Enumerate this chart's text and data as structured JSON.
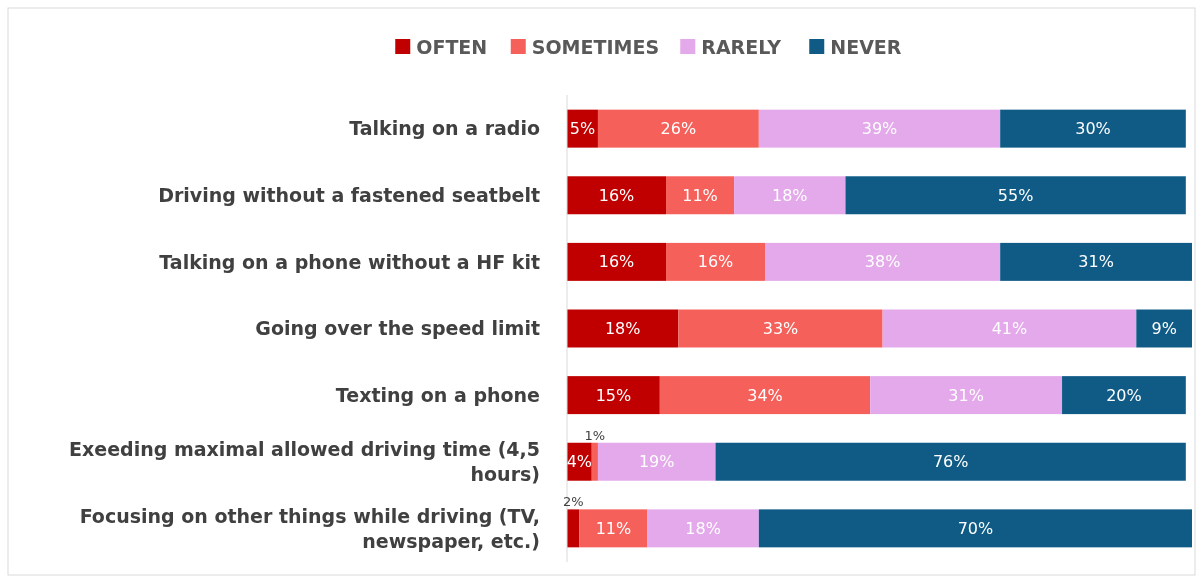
{
  "chart_data": {
    "type": "bar",
    "orientation": "horizontal",
    "stacked": true,
    "legend": "top",
    "categories": [
      "Talking on a radio",
      "Driving without a fastened seatbelt",
      "Talking on a phone without a HF kit",
      "Going over the speed limit",
      "Texting on a phone",
      "Exeeding maximal allowed driving time (4,5 hours)",
      "Focusing on other things while driving (TV, newspaper, etc.)"
    ],
    "series": [
      {
        "name": "OFTEN",
        "color": "#c00000",
        "values": [
          5,
          16,
          16,
          18,
          15,
          4,
          2
        ],
        "value_labels": [
          "5%",
          "16%",
          "16%",
          "18%",
          "15%",
          "4%",
          "2%"
        ]
      },
      {
        "name": "SOMETIMES",
        "color": "#f6605a",
        "values": [
          26,
          11,
          16,
          33,
          34,
          1,
          11
        ],
        "value_labels": [
          "26%",
          "11%",
          "16%",
          "33%",
          "34%",
          "1%",
          "11%"
        ]
      },
      {
        "name": "RARELY",
        "color": "#e3a9ea",
        "values": [
          39,
          18,
          38,
          41,
          31,
          19,
          18
        ],
        "value_labels": [
          "39%",
          "18%",
          "38%",
          "41%",
          "31%",
          "19%",
          "18%"
        ]
      },
      {
        "name": "NEVER",
        "color": "#0f5b86",
        "values": [
          30,
          55,
          31,
          9,
          20,
          76,
          70
        ],
        "value_labels": [
          "30%",
          "55%",
          "31%",
          "9%",
          "20%",
          "76%",
          "70%"
        ]
      }
    ]
  }
}
